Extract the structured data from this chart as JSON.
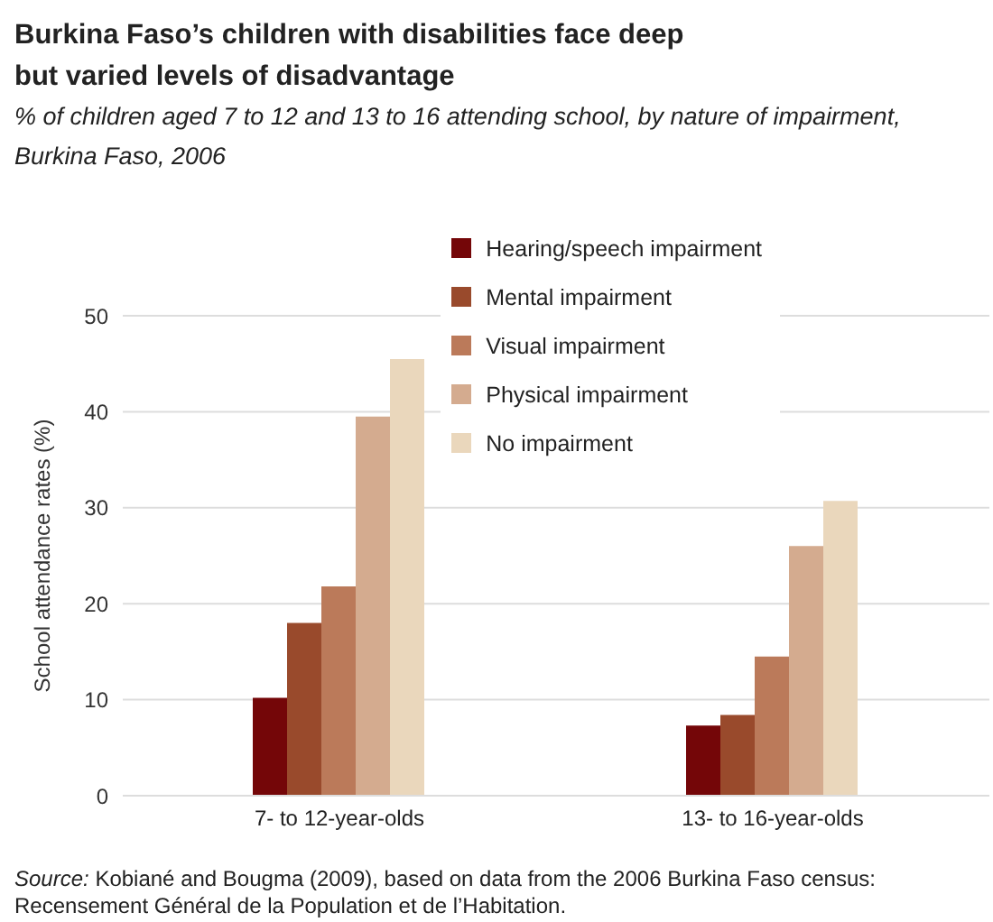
{
  "chart_data": {
    "type": "bar",
    "title": "Burkina Faso’s children with disabilities face deep but varied levels of disadvantage",
    "subtitle": "% of children aged 7 to 12 and 13 to 16 attending school, by nature of impairment, Burkina Faso, 2006",
    "ylabel": "School attendance rates (%)",
    "categories": [
      "7- to 12-year-olds",
      "13- to 16-year-olds"
    ],
    "series": [
      {
        "name": "Hearing/speech impairment",
        "color": "#740608",
        "values": [
          10.2,
          7.3
        ]
      },
      {
        "name": "Mental impairment",
        "color": "#994a2c",
        "values": [
          18,
          8.4
        ]
      },
      {
        "name": "Visual impairment",
        "color": "#bb7a5a",
        "values": [
          21.8,
          14.5
        ]
      },
      {
        "name": "Physical impairment",
        "color": "#d4ab8f",
        "values": [
          39.5,
          26
        ]
      },
      {
        "name": "No impairment",
        "color": "#ead7bc",
        "values": [
          45.5,
          30.7
        ]
      }
    ],
    "ylim": [
      0,
      50
    ],
    "yticks": [
      0,
      10,
      20,
      30,
      40,
      50
    ],
    "grid": "y",
    "legend": "top right",
    "annotations": [
      "Source: Kobiané and Bougma (2009), based on data from the 2006 Burkina Faso census: Recensement Général de la Population et de l’Habitation."
    ]
  }
}
